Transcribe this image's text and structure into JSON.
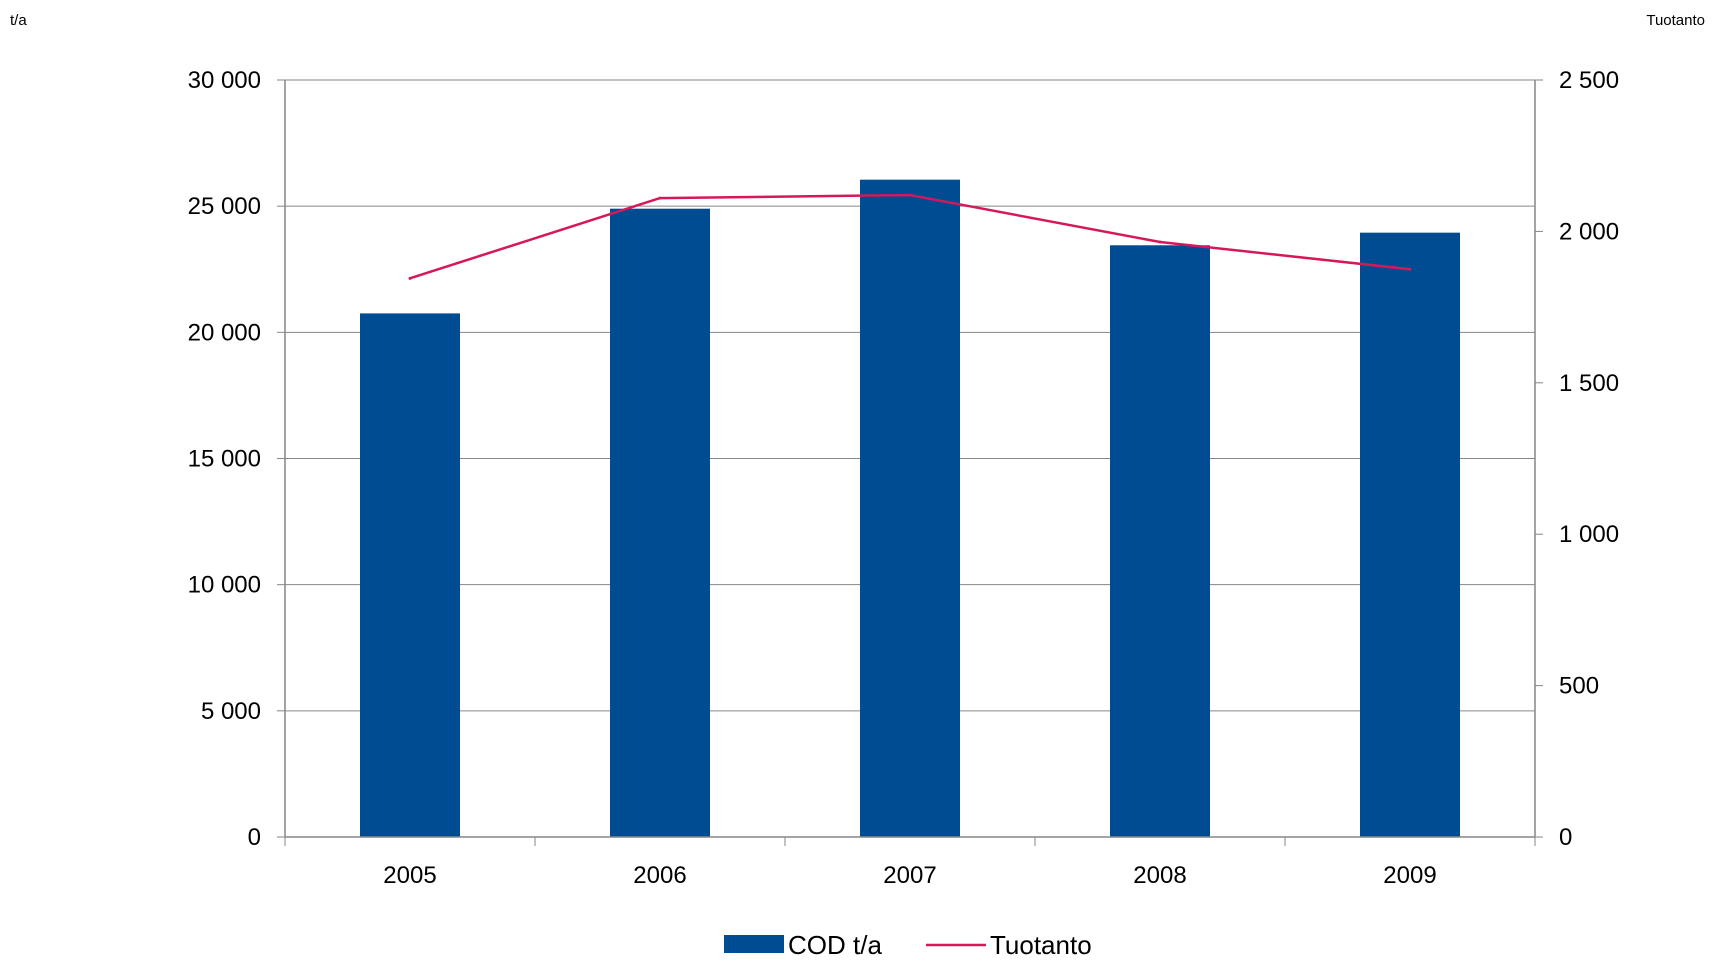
{
  "labels": {
    "left_unit": "t/a",
    "right_unit": "Tuotanto"
  },
  "colors": {
    "bar": "#004C93",
    "line": "#D6185A",
    "grid": "#868686",
    "axis": "#868686"
  },
  "chart_data": {
    "type": "bar",
    "title": "",
    "categories": [
      "2005",
      "2006",
      "2007",
      "2008",
      "2009"
    ],
    "series": [
      {
        "name": "COD t/a",
        "type": "bar",
        "axis": "left",
        "values": [
          20750,
          24900,
          26050,
          23450,
          23950
        ]
      },
      {
        "name": "Tuotanto",
        "type": "line",
        "axis": "right",
        "values": [
          1845,
          2110,
          2120,
          1965,
          1875
        ]
      }
    ],
    "y_left": {
      "label": "t/a",
      "ylim": [
        0,
        30000
      ],
      "ticks": [
        "0",
        "5 000",
        "10 000",
        "15 000",
        "20 000",
        "25 000",
        "30 000"
      ]
    },
    "y_right": {
      "label": "Tuotanto",
      "ylim": [
        0,
        2500
      ],
      "ticks": [
        "0",
        "500",
        "1 000",
        "1 500",
        "2 000",
        "2 500"
      ]
    },
    "grid": true,
    "legend": "bottom"
  }
}
